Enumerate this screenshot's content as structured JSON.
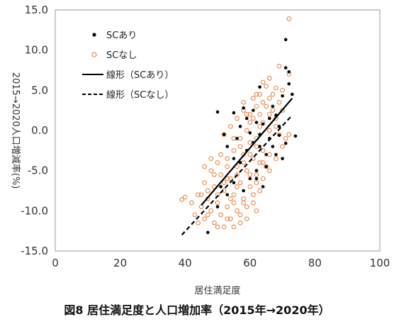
{
  "caption": "図8 居住満足度と人口増加率（2015年→2020年）",
  "chart_data": {
    "type": "scatter",
    "xlabel": "居住満足度",
    "ylabel": "2015→2020人口増減率(%)",
    "xlim": [
      0,
      100
    ],
    "ylim": [
      -15,
      15
    ],
    "x_ticks": [
      "0",
      "20",
      "40",
      "60",
      "80",
      "100"
    ],
    "y_ticks": [
      "15.0",
      "10.0",
      "5.0",
      "0.0",
      "-5.0",
      "-10.0",
      "-15.0"
    ],
    "legend_position": "top-left",
    "grid": false,
    "series": [
      {
        "name": "SCあり",
        "marker": "filled-dot",
        "color": "#000000",
        "points": [
          [
            71,
            11.3
          ],
          [
            72,
            7.3
          ],
          [
            71,
            7.8
          ],
          [
            70,
            4.3
          ],
          [
            73,
            4.5
          ],
          [
            72,
            5.8
          ],
          [
            68,
            1.9
          ],
          [
            74,
            -0.7
          ],
          [
            71,
            -1.6
          ],
          [
            69,
            -0.6
          ],
          [
            70,
            -3.5
          ],
          [
            65,
            -4.5
          ],
          [
            63,
            5.4
          ],
          [
            61,
            2.5
          ],
          [
            58,
            2.8
          ],
          [
            55,
            2.2
          ],
          [
            50,
            2.3
          ],
          [
            52,
            -0.5
          ],
          [
            56,
            -1.0
          ],
          [
            59,
            -2.5
          ],
          [
            61,
            -1.5
          ],
          [
            62,
            -5.0
          ],
          [
            65,
            -3.0
          ],
          [
            67,
            -2.0
          ],
          [
            68,
            -3.0
          ],
          [
            63,
            -0.5
          ],
          [
            64,
            0.8
          ],
          [
            66,
            1.5
          ],
          [
            62,
            1.0
          ],
          [
            60,
            -0.3
          ],
          [
            57,
            -4.0
          ],
          [
            55,
            -6.5
          ],
          [
            53,
            -8.0
          ],
          [
            51,
            -7.0
          ],
          [
            50,
            -9.5
          ],
          [
            47,
            -12.7
          ],
          [
            58,
            -7.5
          ],
          [
            62,
            -6.0
          ],
          [
            64,
            -7.0
          ],
          [
            60,
            -6.0
          ],
          [
            55,
            -3.5
          ],
          [
            53,
            -2.0
          ],
          [
            57,
            0.5
          ],
          [
            59,
            1.5
          ],
          [
            66,
            -1.0
          ],
          [
            69,
            0.5
          ],
          [
            67,
            3.0
          ],
          [
            63,
            -2.0
          ]
        ]
      },
      {
        "name": "SCなし",
        "marker": "hollow-circle",
        "color": "#e8874a",
        "points": [
          [
            72,
            13.9
          ],
          [
            72,
            7.0
          ],
          [
            69,
            8.0
          ],
          [
            66,
            6.5
          ],
          [
            64,
            6.0
          ],
          [
            68,
            5.3
          ],
          [
            70,
            5.0
          ],
          [
            63,
            4.5
          ],
          [
            61,
            4.0
          ],
          [
            58,
            3.5
          ],
          [
            62,
            3.0
          ],
          [
            65,
            3.0
          ],
          [
            67,
            2.5
          ],
          [
            59,
            2.0
          ],
          [
            56,
            1.5
          ],
          [
            60,
            1.0
          ],
          [
            63,
            0.5
          ],
          [
            66,
            0.0
          ],
          [
            69,
            -0.5
          ],
          [
            71,
            -1.0
          ],
          [
            54,
            0.5
          ],
          [
            52,
            -0.5
          ],
          [
            57,
            -1.0
          ],
          [
            60,
            -1.5
          ],
          [
            62,
            -2.0
          ],
          [
            64,
            -2.5
          ],
          [
            66,
            -3.0
          ],
          [
            68,
            -3.5
          ],
          [
            55,
            -2.5
          ],
          [
            58,
            -3.0
          ],
          [
            61,
            -3.5
          ],
          [
            63,
            -4.0
          ],
          [
            65,
            -4.5
          ],
          [
            53,
            -3.5
          ],
          [
            50,
            -4.0
          ],
          [
            56,
            -4.5
          ],
          [
            59,
            -5.0
          ],
          [
            62,
            -5.5
          ],
          [
            64,
            -6.0
          ],
          [
            48,
            -5.0
          ],
          [
            51,
            -5.5
          ],
          [
            54,
            -6.0
          ],
          [
            57,
            -6.5
          ],
          [
            60,
            -7.0
          ],
          [
            63,
            -7.5
          ],
          [
            46,
            -6.5
          ],
          [
            49,
            -7.0
          ],
          [
            52,
            -7.5
          ],
          [
            55,
            -8.0
          ],
          [
            58,
            -8.5
          ],
          [
            61,
            -8.0
          ],
          [
            44,
            -8.0
          ],
          [
            47,
            -8.5
          ],
          [
            50,
            -9.0
          ],
          [
            53,
            -9.5
          ],
          [
            56,
            -10.0
          ],
          [
            59,
            -9.5
          ],
          [
            42,
            -9.0
          ],
          [
            45,
            -9.5
          ],
          [
            48,
            -10.0
          ],
          [
            51,
            -10.5
          ],
          [
            54,
            -11.0
          ],
          [
            57,
            -11.5
          ],
          [
            40,
            -8.3
          ],
          [
            39,
            -8.6
          ],
          [
            43,
            -10.5
          ],
          [
            46,
            -11.0
          ],
          [
            49,
            -11.5
          ],
          [
            52,
            -12.0
          ],
          [
            55,
            -12.0
          ],
          [
            44,
            -11.5
          ],
          [
            47,
            -10.5
          ],
          [
            50,
            -8.0
          ],
          [
            53,
            -6.0
          ],
          [
            56,
            -5.5
          ],
          [
            58,
            -4.0
          ],
          [
            60,
            -3.0
          ],
          [
            62,
            -1.0
          ],
          [
            64,
            1.0
          ],
          [
            66,
            2.0
          ],
          [
            68,
            0.5
          ],
          [
            70,
            -2.0
          ],
          [
            72,
            -0.5
          ],
          [
            69,
            3.5
          ],
          [
            67,
            4.5
          ],
          [
            65,
            5.5
          ],
          [
            63,
            2.0
          ],
          [
            61,
            1.5
          ],
          [
            59,
            0.0
          ],
          [
            57,
            -2.0
          ],
          [
            55,
            -1.0
          ],
          [
            53,
            -4.5
          ],
          [
            51,
            -3.0
          ],
          [
            49,
            -5.5
          ],
          [
            47,
            -7.5
          ],
          [
            45,
            -8.0
          ],
          [
            52,
            -6.5
          ],
          [
            54,
            -8.5
          ],
          [
            56,
            -7.0
          ],
          [
            58,
            -9.0
          ],
          [
            60,
            -5.5
          ],
          [
            62,
            -6.5
          ],
          [
            64,
            -4.0
          ],
          [
            66,
            -5.0
          ],
          [
            61,
            -9.0
          ],
          [
            57,
            -10.5
          ],
          [
            53,
            -11.0
          ],
          [
            50,
            -12.0
          ],
          [
            48,
            -3.5
          ],
          [
            46,
            -4.5
          ],
          [
            58,
            2.5
          ],
          [
            60,
            2.0
          ],
          [
            62,
            4.5
          ],
          [
            64,
            3.5
          ],
          [
            66,
            4.0
          ],
          [
            68,
            1.5
          ],
          [
            70,
            2.5
          ],
          [
            55,
            -9.0
          ],
          [
            59,
            -11.0
          ],
          [
            62,
            -10.0
          ]
        ]
      },
      {
        "name": "線形（SCあり）",
        "line_style": "solid",
        "color": "#000000",
        "points": [
          [
            45,
            -9.3
          ],
          [
            73,
            4.0
          ]
        ]
      },
      {
        "name": "線形（SCなし）",
        "line_style": "dashed",
        "color": "#000000",
        "points": [
          [
            39,
            -13.0
          ],
          [
            73,
            1.9
          ]
        ]
      }
    ]
  }
}
